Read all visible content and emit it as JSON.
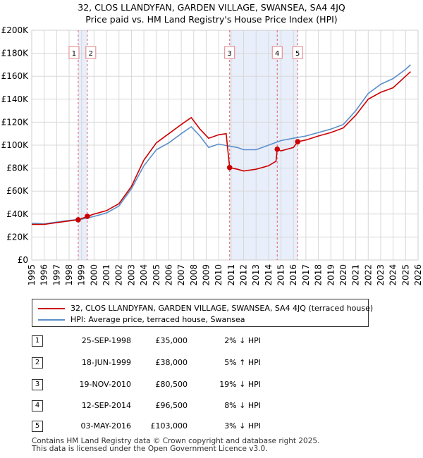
{
  "title_line1": "32, CLOS LLANDYFAN, GARDEN VILLAGE, SWANSEA, SA4 4JQ",
  "title_line2": "Price paid vs. HM Land Registry's House Price Index (HPI)",
  "legend": {
    "property": "32, CLOS LLANDYFAN, GARDEN VILLAGE, SWANSEA, SA4 4JQ (terraced house)",
    "hpi": "HPI: Average price, terraced house, Swansea"
  },
  "colors": {
    "property": "#cc0000",
    "hpi": "#5b8fc9",
    "shade": "#e8eefa",
    "grid": "#d8d8d8"
  },
  "transactions": [
    {
      "num": "1",
      "date": "25-SEP-1998",
      "price": "£35,000",
      "hpi": "2% ↓ HPI"
    },
    {
      "num": "2",
      "date": "18-JUN-1999",
      "price": "£38,000",
      "hpi": "5% ↑ HPI"
    },
    {
      "num": "3",
      "date": "19-NOV-2010",
      "price": "£80,500",
      "hpi": "19% ↓ HPI"
    },
    {
      "num": "4",
      "date": "12-SEP-2014",
      "price": "£96,500",
      "hpi": "8% ↓ HPI"
    },
    {
      "num": "5",
      "date": "03-MAY-2016",
      "price": "£103,000",
      "hpi": "3% ↓ HPI"
    }
  ],
  "footer_line1": "Contains HM Land Registry data © Crown copyright and database right 2025.",
  "footer_line2": "This data is licensed under the Open Government Licence v3.0.",
  "chart_data": {
    "type": "line",
    "title": "32, CLOS LLANDYFAN, GARDEN VILLAGE, SWANSEA, SA4 4JQ",
    "subtitle": "Price paid vs. HM Land Registry's House Price Index (HPI)",
    "xlabel": "",
    "ylabel": "",
    "xlim": [
      1995,
      2026
    ],
    "ylim": [
      0,
      200000
    ],
    "grid": true,
    "legend_position": "bottom",
    "x_ticks": [
      "1995",
      "1996",
      "1997",
      "1998",
      "1999",
      "2000",
      "2001",
      "2002",
      "2003",
      "2004",
      "2005",
      "2006",
      "2007",
      "2008",
      "2009",
      "2010",
      "2011",
      "2012",
      "2013",
      "2014",
      "2015",
      "2016",
      "2017",
      "2018",
      "2019",
      "2020",
      "2021",
      "2022",
      "2023",
      "2024",
      "2025",
      "2026"
    ],
    "y_ticks": [
      "£0",
      "£20K",
      "£40K",
      "£60K",
      "£80K",
      "£100K",
      "£120K",
      "£140K",
      "£160K",
      "£180K",
      "£200K"
    ],
    "shaded_ranges": [
      [
        1998.73,
        1999.46
      ],
      [
        2010.88,
        2016.34
      ]
    ],
    "sales": [
      {
        "label": "1",
        "x": 1998.73,
        "y": 35000
      },
      {
        "label": "2",
        "x": 1999.46,
        "y": 38000
      },
      {
        "label": "3",
        "x": 2010.88,
        "y": 80500
      },
      {
        "label": "4",
        "x": 2014.7,
        "y": 96500
      },
      {
        "label": "5",
        "x": 2016.34,
        "y": 103000
      }
    ],
    "series": [
      {
        "name": "HPI: Average price, terraced house, Swansea",
        "points": [
          [
            1995,
            32000
          ],
          [
            1996,
            31500
          ],
          [
            1997,
            33000
          ],
          [
            1998,
            34500
          ],
          [
            1999,
            35500
          ],
          [
            2000,
            38000
          ],
          [
            2001,
            41000
          ],
          [
            2002,
            47000
          ],
          [
            2003,
            62000
          ],
          [
            2004,
            82000
          ],
          [
            2005,
            96000
          ],
          [
            2006,
            102000
          ],
          [
            2007,
            110000
          ],
          [
            2007.8,
            116000
          ],
          [
            2008.5,
            108000
          ],
          [
            2009.2,
            98000
          ],
          [
            2010,
            101000
          ],
          [
            2010.9,
            99000
          ],
          [
            2011.5,
            98000
          ],
          [
            2012,
            96000
          ],
          [
            2013,
            96000
          ],
          [
            2014,
            100000
          ],
          [
            2015,
            104000
          ],
          [
            2016,
            106000
          ],
          [
            2017,
            108000
          ],
          [
            2018,
            111000
          ],
          [
            2019,
            114000
          ],
          [
            2020,
            118000
          ],
          [
            2021,
            130000
          ],
          [
            2022,
            145000
          ],
          [
            2023,
            153000
          ],
          [
            2024,
            158000
          ],
          [
            2025,
            166000
          ],
          [
            2025.4,
            170000
          ]
        ]
      },
      {
        "name": "32, CLOS LLANDYFAN, GARDEN VILLAGE, SWANSEA, SA4 4JQ (terraced house)",
        "points": [
          [
            1995,
            31000
          ],
          [
            1996,
            31000
          ],
          [
            1997,
            32500
          ],
          [
            1998,
            34000
          ],
          [
            1998.73,
            35000
          ],
          [
            1999,
            36000
          ],
          [
            1999.46,
            38000
          ],
          [
            2000,
            40000
          ],
          [
            2001,
            43000
          ],
          [
            2002,
            49000
          ],
          [
            2003,
            64000
          ],
          [
            2004,
            87000
          ],
          [
            2005,
            102000
          ],
          [
            2006,
            110000
          ],
          [
            2007,
            118000
          ],
          [
            2007.8,
            124000
          ],
          [
            2008.5,
            114000
          ],
          [
            2009.2,
            106000
          ],
          [
            2010,
            109000
          ],
          [
            2010.6,
            110000
          ],
          [
            2010.88,
            80500
          ],
          [
            2011.5,
            79000
          ],
          [
            2012,
            77500
          ],
          [
            2013,
            79000
          ],
          [
            2014,
            82000
          ],
          [
            2014.6,
            86000
          ],
          [
            2014.7,
            96500
          ],
          [
            2015,
            95000
          ],
          [
            2016,
            98000
          ],
          [
            2016.34,
            103000
          ],
          [
            2017,
            104500
          ],
          [
            2018,
            108000
          ],
          [
            2019,
            111000
          ],
          [
            2020,
            115000
          ],
          [
            2021,
            126000
          ],
          [
            2022,
            140000
          ],
          [
            2023,
            146000
          ],
          [
            2024,
            150000
          ],
          [
            2025,
            160000
          ],
          [
            2025.4,
            164000
          ]
        ]
      }
    ]
  }
}
